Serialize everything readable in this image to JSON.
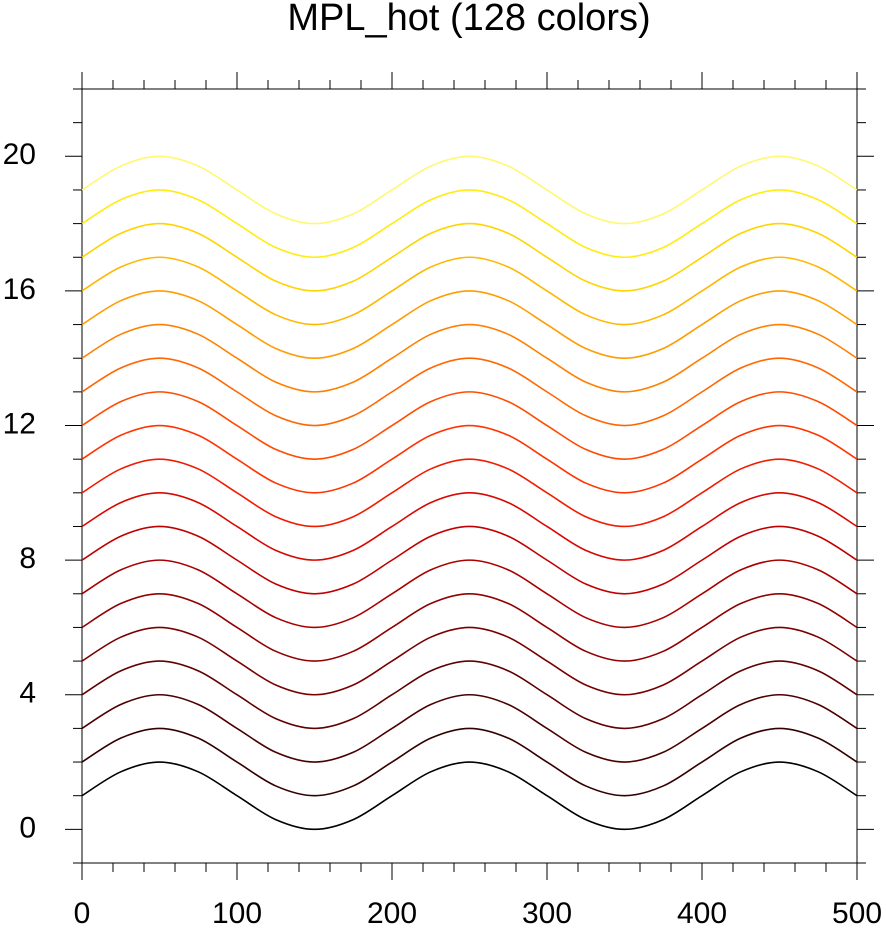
{
  "chart_data": {
    "type": "line",
    "title": "MPL_hot (128 colors)",
    "x": [
      0,
      25,
      50,
      75,
      100,
      125,
      150,
      175,
      200,
      225,
      250,
      275,
      300,
      325,
      350,
      375,
      400,
      425,
      450,
      475,
      500
    ],
    "xlim": [
      0,
      500
    ],
    "xticks": [
      0,
      100,
      200,
      300,
      400,
      500
    ],
    "xminorticks": [
      20,
      40,
      60,
      80,
      120,
      140,
      160,
      180,
      220,
      240,
      260,
      280,
      320,
      340,
      360,
      380,
      420,
      440,
      460,
      480
    ],
    "ylim": [
      -1,
      22
    ],
    "yticks": [
      0,
      4,
      8,
      12,
      16,
      20
    ],
    "yminorticks": [
      -1,
      1,
      2,
      3,
      5,
      6,
      7,
      9,
      10,
      11,
      13,
      14,
      15,
      17,
      18,
      19,
      21,
      22
    ],
    "series": [
      {
        "color": "#000000",
        "values": [
          1,
          1.71,
          2,
          1.71,
          1,
          0.29,
          0,
          0.29,
          1,
          1.71,
          2,
          1.71,
          1,
          0.29,
          0,
          0.29,
          1,
          1.71,
          2,
          1.71,
          1
        ]
      },
      {
        "color": "#330000",
        "values": [
          2,
          2.71,
          3,
          2.71,
          2,
          1.29,
          1,
          1.29,
          2,
          2.71,
          3,
          2.71,
          2,
          1.29,
          1,
          1.29,
          2,
          2.71,
          3,
          2.71,
          2
        ]
      },
      {
        "color": "#4a0000",
        "values": [
          3,
          3.71,
          4,
          3.71,
          3,
          2.29,
          2,
          2.29,
          3,
          3.71,
          4,
          3.71,
          3,
          2.29,
          2,
          2.29,
          3,
          3.71,
          4,
          3.71,
          3
        ]
      },
      {
        "color": "#600000",
        "values": [
          4,
          4.71,
          5,
          4.71,
          4,
          3.29,
          3,
          3.29,
          4,
          4.71,
          5,
          4.71,
          4,
          3.29,
          3,
          3.29,
          4,
          4.71,
          5,
          4.71,
          4
        ]
      },
      {
        "color": "#780000",
        "values": [
          5,
          5.71,
          6,
          5.71,
          5,
          4.29,
          4,
          4.29,
          5,
          5.71,
          6,
          5.71,
          5,
          4.29,
          4,
          4.29,
          5,
          5.71,
          6,
          5.71,
          5
        ]
      },
      {
        "color": "#900000",
        "values": [
          6,
          6.71,
          7,
          6.71,
          6,
          5.29,
          5,
          5.29,
          6,
          6.71,
          7,
          6.71,
          6,
          5.29,
          5,
          5.29,
          6,
          6.71,
          7,
          6.71,
          6
        ]
      },
      {
        "color": "#a80000",
        "values": [
          7,
          7.71,
          8,
          7.71,
          7,
          6.29,
          6,
          6.29,
          7,
          7.71,
          8,
          7.71,
          7,
          6.29,
          6,
          6.29,
          7,
          7.71,
          8,
          7.71,
          7
        ]
      },
      {
        "color": "#c00000",
        "values": [
          8,
          8.71,
          9,
          8.71,
          8,
          7.29,
          7,
          7.29,
          8,
          8.71,
          9,
          8.71,
          8,
          7.29,
          7,
          7.29,
          8,
          8.71,
          9,
          8.71,
          8
        ]
      },
      {
        "color": "#d80800",
        "values": [
          9,
          9.71,
          10,
          9.71,
          9,
          8.29,
          8,
          8.29,
          9,
          9.71,
          10,
          9.71,
          9,
          8.29,
          8,
          8.29,
          9,
          9.71,
          10,
          9.71,
          9
        ]
      },
      {
        "color": "#f01c00",
        "values": [
          10,
          10.71,
          11,
          10.71,
          10,
          9.29,
          9,
          9.29,
          10,
          10.71,
          11,
          10.71,
          10,
          9.29,
          9,
          9.29,
          10,
          10.71,
          11,
          10.71,
          10
        ]
      },
      {
        "color": "#ff3400",
        "values": [
          11,
          11.71,
          12,
          11.71,
          11,
          10.29,
          10,
          10.29,
          11,
          11.71,
          12,
          11.71,
          11,
          10.29,
          10,
          10.29,
          11,
          11.71,
          12,
          11.71,
          11
        ]
      },
      {
        "color": "#ff4c00",
        "values": [
          12,
          12.71,
          13,
          12.71,
          12,
          11.29,
          11,
          11.29,
          12,
          12.71,
          13,
          12.71,
          12,
          11.29,
          11,
          11.29,
          12,
          12.71,
          13,
          12.71,
          12
        ]
      },
      {
        "color": "#ff6600",
        "values": [
          13,
          13.71,
          14,
          13.71,
          13,
          12.29,
          12,
          12.29,
          13,
          13.71,
          14,
          13.71,
          13,
          12.29,
          12,
          12.29,
          13,
          13.71,
          14,
          13.71,
          13
        ]
      },
      {
        "color": "#ff8000",
        "values": [
          14,
          14.71,
          15,
          14.71,
          14,
          13.29,
          13,
          13.29,
          14,
          14.71,
          15,
          14.71,
          14,
          13.29,
          13,
          13.29,
          14,
          14.71,
          15,
          14.71,
          14
        ]
      },
      {
        "color": "#ff9c00",
        "values": [
          15,
          15.71,
          16,
          15.71,
          15,
          14.29,
          14,
          14.29,
          15,
          15.71,
          16,
          15.71,
          15,
          14.29,
          14,
          14.29,
          15,
          15.71,
          16,
          15.71,
          15
        ]
      },
      {
        "color": "#ffb800",
        "values": [
          16,
          16.71,
          17,
          16.71,
          16,
          15.29,
          15,
          15.29,
          16,
          16.71,
          17,
          16.71,
          16,
          15.29,
          15,
          15.29,
          16,
          16.71,
          17,
          16.71,
          16
        ]
      },
      {
        "color": "#ffd400",
        "values": [
          17,
          17.71,
          18,
          17.71,
          17,
          16.29,
          16,
          16.29,
          17,
          17.71,
          18,
          17.71,
          17,
          16.29,
          16,
          16.29,
          17,
          17.71,
          18,
          17.71,
          17
        ]
      },
      {
        "color": "#ffec10",
        "values": [
          18,
          18.71,
          19,
          18.71,
          18,
          17.29,
          17,
          17.29,
          18,
          18.71,
          19,
          18.71,
          18,
          17.29,
          17,
          17.29,
          18,
          18.71,
          19,
          18.71,
          18
        ]
      },
      {
        "color": "#fff870",
        "values": [
          19,
          19.71,
          20,
          19.71,
          19,
          18.29,
          18,
          18.29,
          19,
          19.71,
          20,
          19.71,
          19,
          18.29,
          18,
          18.29,
          19,
          19.71,
          20,
          19.71,
          19
        ]
      }
    ]
  }
}
